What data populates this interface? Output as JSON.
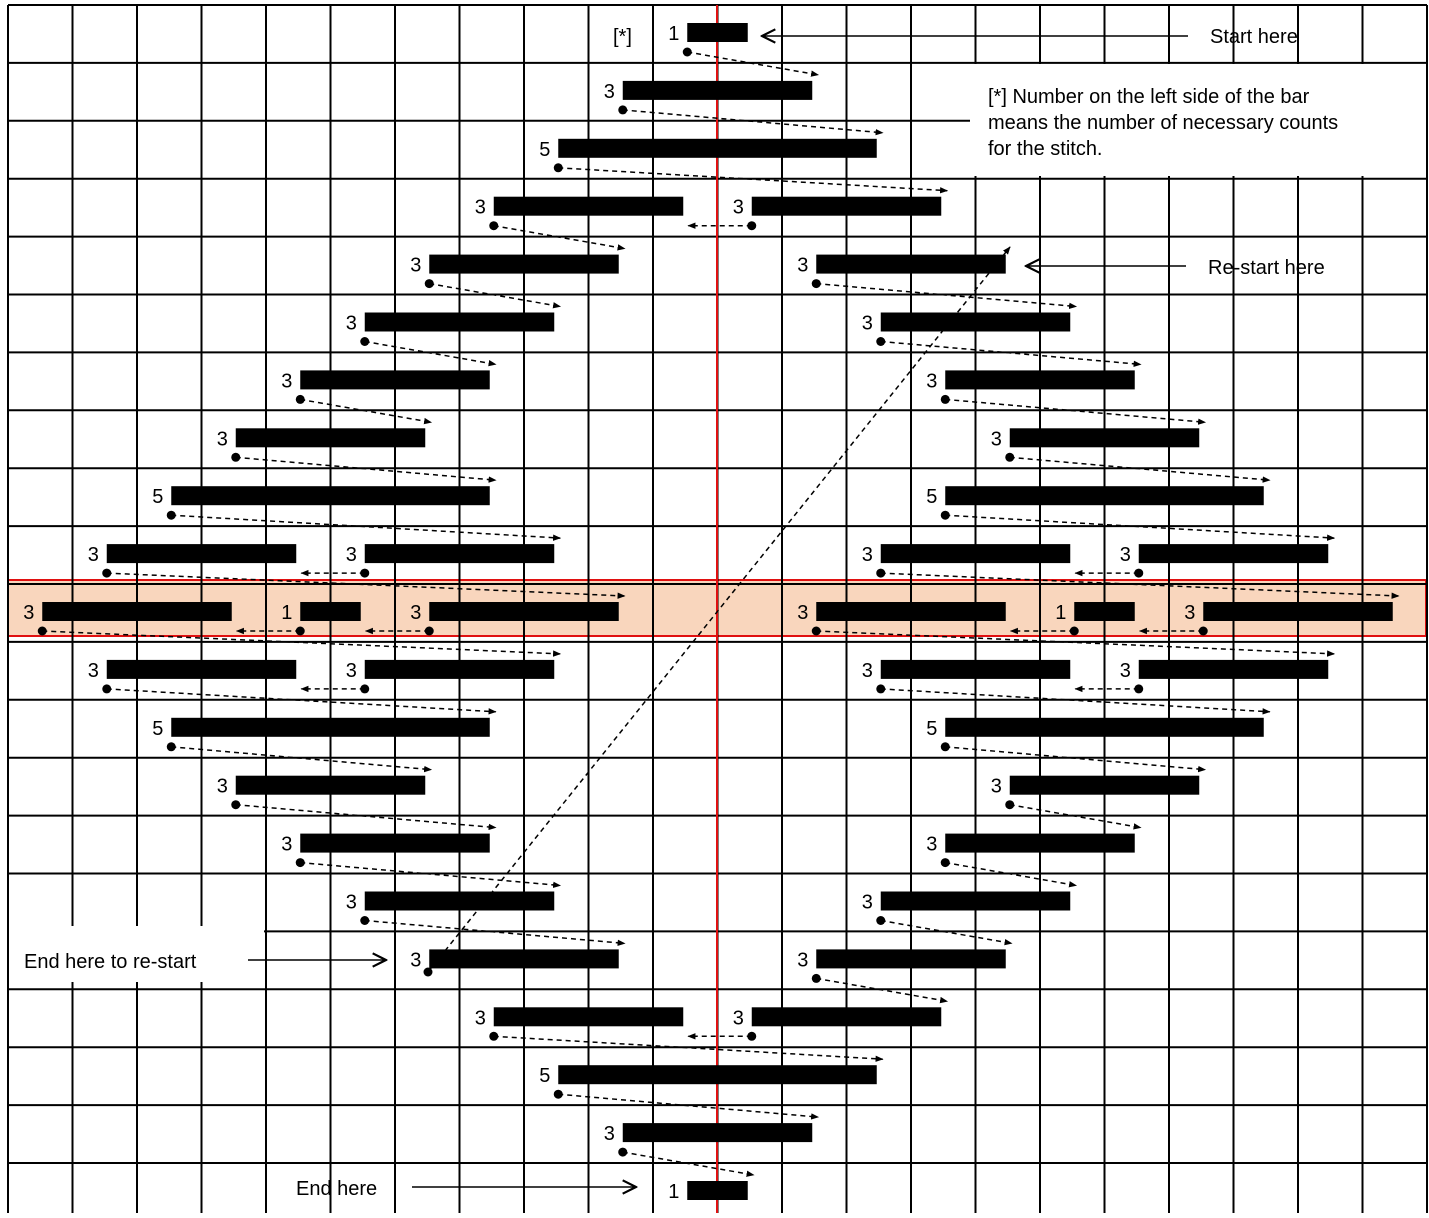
{
  "labels": {
    "start": "Start here",
    "restart": "Re-start here",
    "end_restart": "End here to re-start",
    "end": "End here",
    "note_marker": "[*]",
    "note_line1": "[*] Number on the left side of the bar",
    "note_line2": "means the number of necessary counts",
    "note_line3": "for the stitch."
  },
  "colors": {
    "grid": "#000000",
    "center_line": "#e01010",
    "highlight_fill": "#f9d6bd",
    "highlight_border": "#e01010",
    "bar": "#000000"
  },
  "stitch_rows": [
    {
      "row": 0,
      "left": [
        1
      ],
      "right": []
    },
    {
      "row": 1,
      "left": [
        3
      ],
      "right": []
    },
    {
      "row": 2,
      "left": [
        5
      ],
      "right": []
    },
    {
      "row": 3,
      "left": [
        3,
        3
      ],
      "right": []
    },
    {
      "row": 4,
      "left": [
        3
      ],
      "right": [
        3
      ]
    },
    {
      "row": 5,
      "left": [
        3
      ],
      "right": [
        3
      ]
    },
    {
      "row": 6,
      "left": [
        3
      ],
      "right": [
        3
      ]
    },
    {
      "row": 7,
      "left": [
        3
      ],
      "right": [
        3
      ]
    },
    {
      "row": 8,
      "left": [
        5
      ],
      "right": [
        5
      ]
    },
    {
      "row": 9,
      "left": [
        3,
        3
      ],
      "right": [
        3,
        3
      ]
    },
    {
      "row": 10,
      "left": [
        3,
        1,
        3
      ],
      "right": [
        3,
        1,
        3
      ],
      "highlighted": true
    },
    {
      "row": 11,
      "left": [
        3,
        3
      ],
      "right": [
        3,
        3
      ]
    },
    {
      "row": 12,
      "left": [
        5
      ],
      "right": [
        5
      ]
    },
    {
      "row": 13,
      "left": [
        3
      ],
      "right": [
        3
      ]
    },
    {
      "row": 14,
      "left": [
        3
      ],
      "right": [
        3
      ]
    },
    {
      "row": 15,
      "left": [
        3
      ],
      "right": [
        3
      ]
    },
    {
      "row": 16,
      "left": [
        3
      ],
      "right": [
        3
      ]
    },
    {
      "row": 17,
      "left": [
        3,
        3
      ],
      "right": []
    },
    {
      "row": 18,
      "left": [
        5
      ],
      "right": []
    },
    {
      "row": 19,
      "left": [
        3
      ],
      "right": []
    },
    {
      "row": 20,
      "left": [
        1
      ],
      "right": []
    }
  ]
}
